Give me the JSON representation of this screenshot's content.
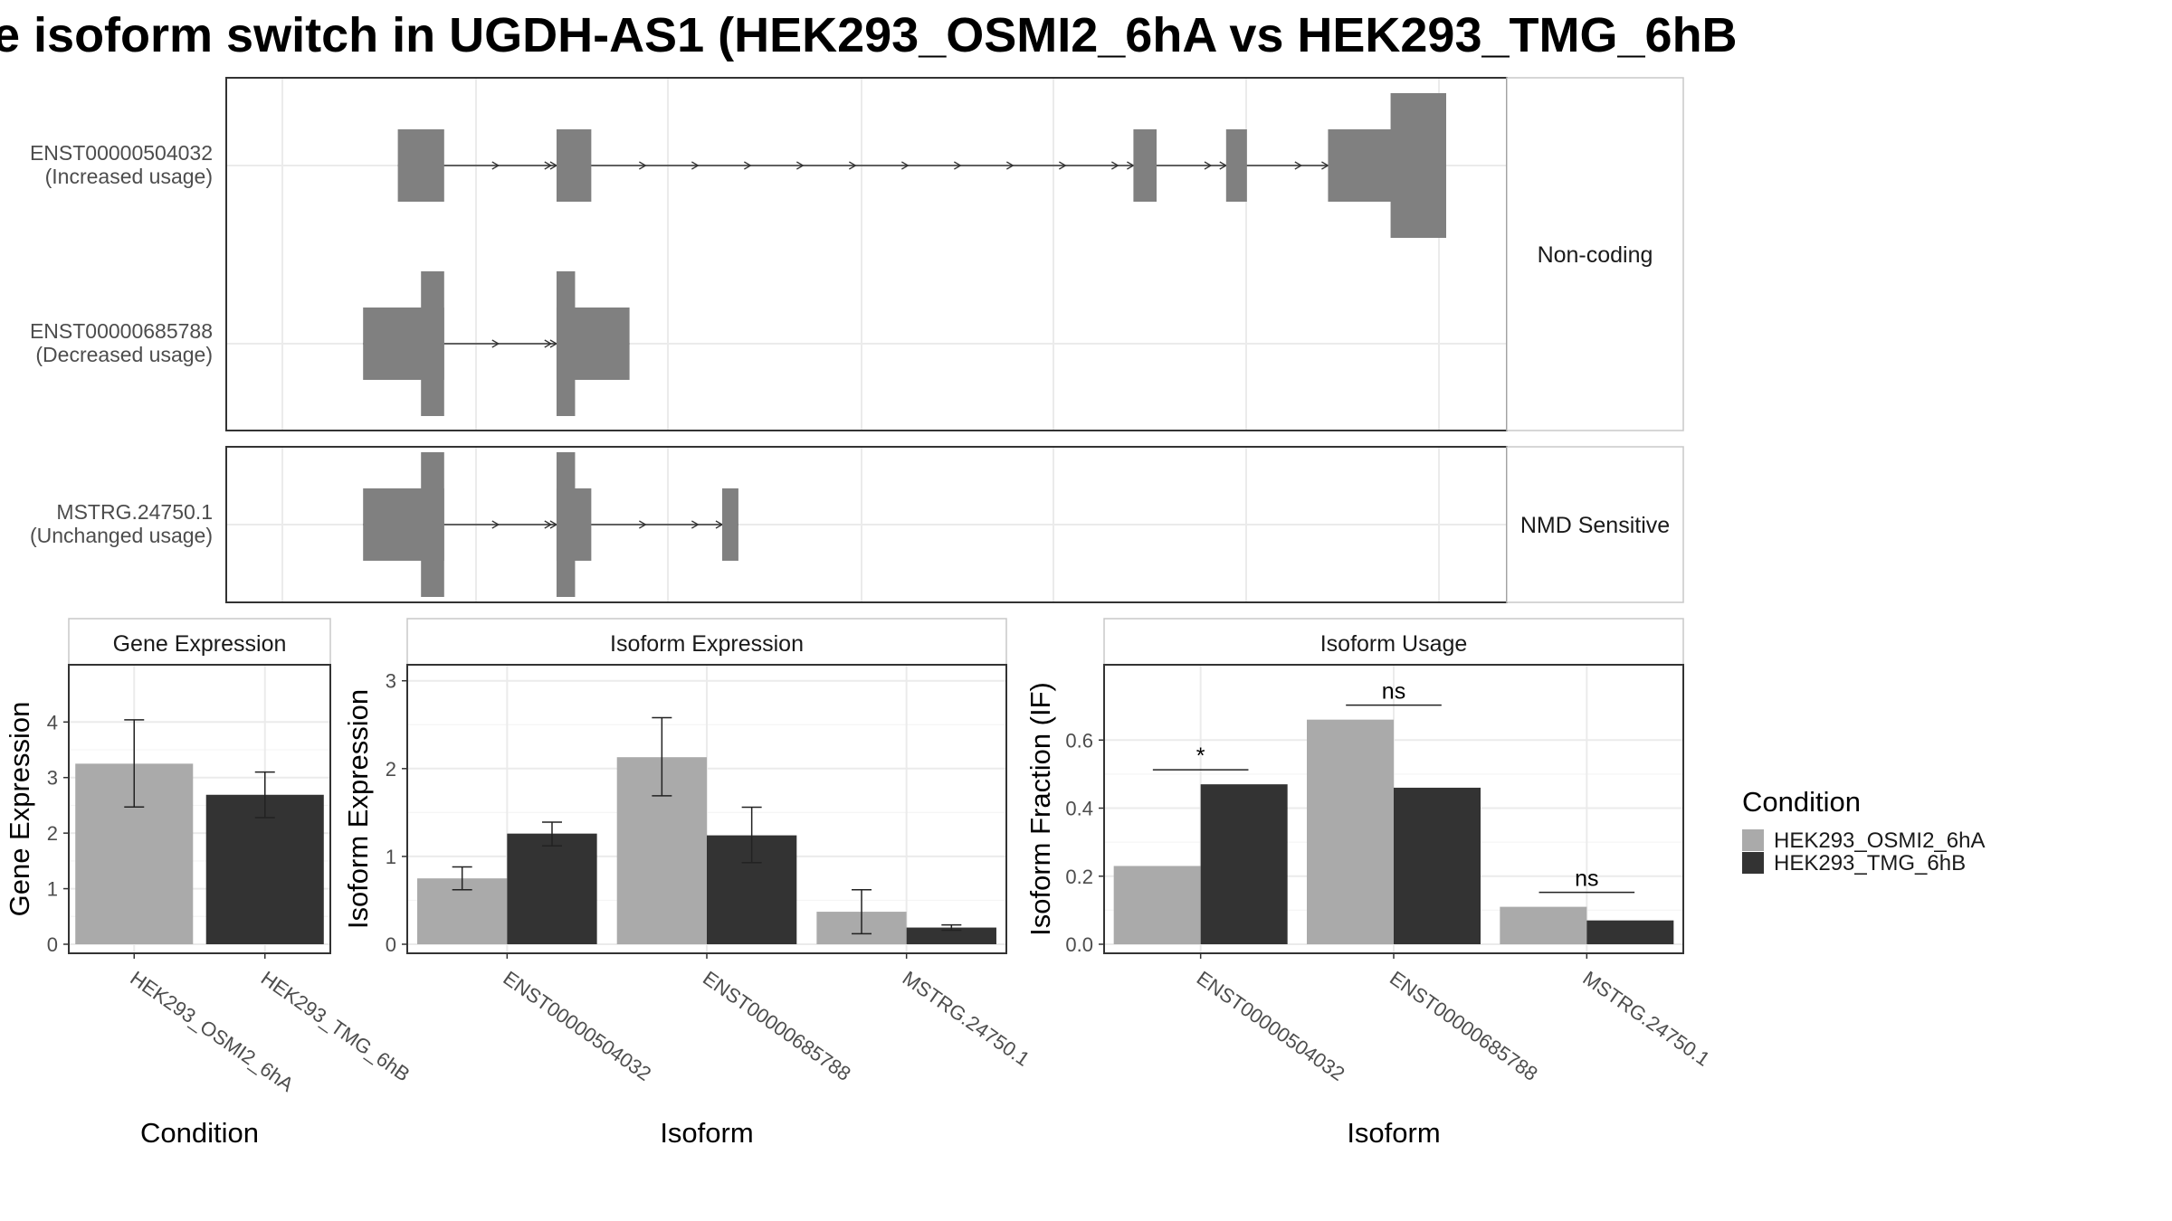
{
  "title": "e isoform switch in UGDH-AS1 (HEK293_OSMI2_6hA vs HEK293_TMG_6hB",
  "colors": {
    "condition_a": "#aaaaaa",
    "condition_b": "#333333",
    "exon": "#808080"
  },
  "structure": {
    "facets": [
      {
        "label": "Non-coding",
        "transcripts": [
          {
            "id": "ENST00000504032",
            "usage": "(Increased usage)",
            "exons": [
              {
                "start": 0.095,
                "end": 0.135,
                "type": "utr"
              },
              {
                "start": 0.232,
                "end": 0.262,
                "type": "utr"
              },
              {
                "start": 0.73,
                "end": 0.75,
                "type": "utr"
              },
              {
                "start": 0.81,
                "end": 0.828,
                "type": "utr"
              },
              {
                "start": 0.898,
                "end": 1.0,
                "type": "utr"
              },
              {
                "start": 0.952,
                "end": 1.0,
                "type": "cds"
              }
            ]
          },
          {
            "id": "ENST00000685788",
            "usage": "(Decreased usage)",
            "exons": [
              {
                "start": 0.065,
                "end": 0.135,
                "type": "utr"
              },
              {
                "start": 0.115,
                "end": 0.135,
                "type": "cds"
              },
              {
                "start": 0.232,
                "end": 0.295,
                "type": "utr"
              },
              {
                "start": 0.232,
                "end": 0.248,
                "type": "cds"
              }
            ]
          }
        ]
      },
      {
        "label": "NMD Sensitive",
        "transcripts": [
          {
            "id": "MSTRG.24750.1",
            "usage": "(Unchanged usage)",
            "exons": [
              {
                "start": 0.065,
                "end": 0.135,
                "type": "utr"
              },
              {
                "start": 0.115,
                "end": 0.135,
                "type": "cds"
              },
              {
                "start": 0.232,
                "end": 0.262,
                "type": "utr"
              },
              {
                "start": 0.232,
                "end": 0.248,
                "type": "cds"
              },
              {
                "start": 0.375,
                "end": 0.389,
                "type": "utr"
              }
            ]
          }
        ]
      }
    ]
  },
  "chart_data": [
    {
      "type": "bar",
      "title": "Gene Expression",
      "xlabel": "Condition",
      "ylabel": "Gene Expression",
      "ylim": [
        0,
        4.9
      ],
      "yticks": [
        0,
        1,
        2,
        3,
        4
      ],
      "categories": [
        "HEK293_OSMI2_6hA",
        "HEK293_TMG_6hB"
      ],
      "values": [
        3.25,
        2.69
      ],
      "error_low": [
        2.47,
        2.28
      ],
      "error_high": [
        4.04,
        3.1
      ]
    },
    {
      "type": "bar",
      "title": "Isoform Expression",
      "xlabel": "Isoform",
      "ylabel": "Isoform Expression",
      "ylim": [
        0,
        3.1
      ],
      "yticks": [
        0,
        1,
        2,
        3
      ],
      "categories": [
        "ENST00000504032",
        "ENST00000685788",
        "MSTRG.24750.1"
      ],
      "series": [
        {
          "name": "HEK293_OSMI2_6hA",
          "values": [
            0.75,
            2.13,
            0.37
          ],
          "error_low": [
            0.62,
            1.69,
            0.12
          ],
          "error_high": [
            0.88,
            2.58,
            0.62
          ]
        },
        {
          "name": "HEK293_TMG_6hB",
          "values": [
            1.26,
            1.24,
            0.19
          ],
          "error_low": [
            1.12,
            0.93,
            0.16
          ],
          "error_high": [
            1.39,
            1.56,
            0.22
          ]
        }
      ]
    },
    {
      "type": "bar",
      "title": "Isoform Usage",
      "xlabel": "Isoform",
      "ylabel": "Isoform Fraction (IF)",
      "ylim": [
        0,
        0.8
      ],
      "yticks": [
        0.0,
        0.2,
        0.4,
        0.6
      ],
      "ytick_labels": [
        "0.0",
        "0.2",
        "0.4",
        "0.6"
      ],
      "categories": [
        "ENST00000504032",
        "ENST00000685788",
        "MSTRG.24750.1"
      ],
      "series": [
        {
          "name": "HEK293_OSMI2_6hA",
          "values": [
            0.23,
            0.66,
            0.11
          ]
        },
        {
          "name": "HEK293_TMG_6hB",
          "values": [
            0.47,
            0.46,
            0.07
          ]
        }
      ],
      "significance": [
        "*",
        "ns",
        "ns"
      ]
    }
  ],
  "legend": {
    "title": "Condition",
    "items": [
      "HEK293_OSMI2_6hA",
      "HEK293_TMG_6hB"
    ]
  }
}
